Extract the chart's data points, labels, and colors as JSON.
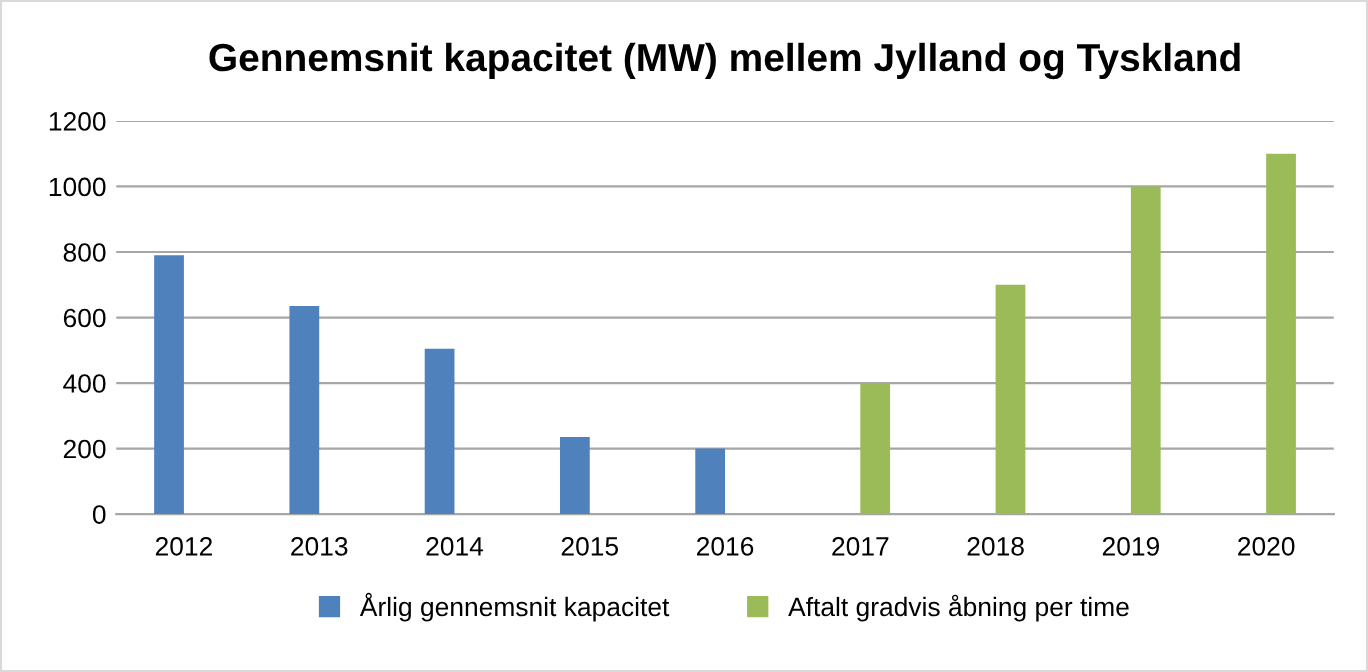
{
  "chart_data": {
    "type": "bar",
    "title": "Gennemsnit kapacitet (MW) mellem Jylland og Tyskland",
    "categories": [
      "2012",
      "2013",
      "2014",
      "2015",
      "2016",
      "2017",
      "2018",
      "2019",
      "2020"
    ],
    "series": [
      {
        "name": "Årlig gennemsnit kapacitet",
        "color": "#4f81bd",
        "values": [
          790,
          635,
          505,
          235,
          200,
          null,
          null,
          null,
          null
        ]
      },
      {
        "name": "Aftalt gradvis åbning per time",
        "color": "#9bbb59",
        "values": [
          null,
          null,
          null,
          null,
          null,
          400,
          700,
          1000,
          1100
        ]
      }
    ],
    "ylim": [
      0,
      1200
    ],
    "yticks": [
      0,
      200,
      400,
      600,
      800,
      1000,
      1200
    ],
    "grid": "y",
    "legend": "bottom"
  }
}
